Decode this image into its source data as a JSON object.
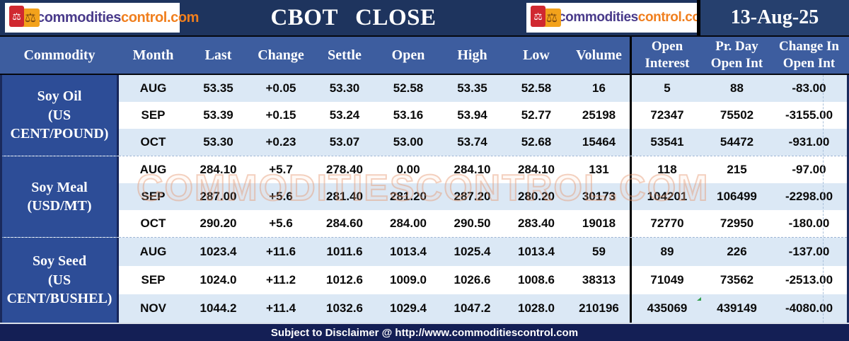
{
  "brand": {
    "name_part1": "commodities",
    "name_part2": "control.com",
    "icon_glyph": "⚖"
  },
  "header": {
    "title": "CBOT CLOSE",
    "date": "13-Aug-25"
  },
  "table": {
    "columns": {
      "commodity": "Commodity",
      "month": "Month",
      "last": "Last",
      "change": "Change",
      "settle": "Settle",
      "open": "Open",
      "high": "High",
      "low": "Low",
      "volume": "Volume",
      "open_interest_l1": "Open",
      "open_interest_l2": "Interest",
      "pr_day_l1": "Pr. Day",
      "pr_day_l2": "Open Int",
      "change_oi_l1": "Change In",
      "change_oi_l2": "Open Int"
    },
    "sections": [
      {
        "commodity_lines": [
          "Soy Oil",
          "(US",
          "CENT/POUND)"
        ],
        "rows": [
          {
            "month": "AUG",
            "last": "53.35",
            "change": "+0.05",
            "settle": "53.30",
            "open": "52.58",
            "high": "53.35",
            "low": "52.58",
            "volume": "16",
            "open_interest": "5",
            "pr_day_open_int": "88",
            "change_in_open_int": "-83.00"
          },
          {
            "month": "SEP",
            "last": "53.39",
            "change": "+0.15",
            "settle": "53.24",
            "open": "53.16",
            "high": "53.94",
            "low": "52.77",
            "volume": "25198",
            "open_interest": "72347",
            "pr_day_open_int": "75502",
            "change_in_open_int": "-3155.00"
          },
          {
            "month": "OCT",
            "last": "53.30",
            "change": "+0.23",
            "settle": "53.07",
            "open": "53.00",
            "high": "53.74",
            "low": "52.68",
            "volume": "15464",
            "open_interest": "53541",
            "pr_day_open_int": "54472",
            "change_in_open_int": "-931.00"
          }
        ]
      },
      {
        "commodity_lines": [
          "Soy Meal",
          "(USD/MT)"
        ],
        "rows": [
          {
            "month": "AUG",
            "last": "284.10",
            "change": "+5.7",
            "settle": "278.40",
            "open": "0.00",
            "high": "284.10",
            "low": "284.10",
            "volume": "131",
            "open_interest": "118",
            "pr_day_open_int": "215",
            "change_in_open_int": "-97.00"
          },
          {
            "month": "SEP",
            "last": "287.00",
            "change": "+5.6",
            "settle": "281.40",
            "open": "281.20",
            "high": "287.20",
            "low": "280.20",
            "volume": "30173",
            "open_interest": "104201",
            "pr_day_open_int": "106499",
            "change_in_open_int": "-2298.00"
          },
          {
            "month": "OCT",
            "last": "290.20",
            "change": "+5.6",
            "settle": "284.60",
            "open": "284.00",
            "high": "290.50",
            "low": "283.40",
            "volume": "19018",
            "open_interest": "72770",
            "pr_day_open_int": "72950",
            "change_in_open_int": "-180.00"
          }
        ]
      },
      {
        "commodity_lines": [
          "Soy Seed",
          "(US",
          "CENT/BUSHEL)"
        ],
        "rows": [
          {
            "month": "AUG",
            "last": "1023.4",
            "change": "+11.6",
            "settle": "1011.6",
            "open": "1013.4",
            "high": "1025.4",
            "low": "1013.4",
            "volume": "59",
            "open_interest": "89",
            "pr_day_open_int": "226",
            "change_in_open_int": "-137.00"
          },
          {
            "month": "SEP",
            "last": "1024.0",
            "change": "+11.2",
            "settle": "1012.6",
            "open": "1009.0",
            "high": "1026.6",
            "low": "1008.6",
            "volume": "38313",
            "open_interest": "71049",
            "pr_day_open_int": "73562",
            "change_in_open_int": "-2513.00"
          },
          {
            "month": "NOV",
            "last": "1044.2",
            "change": "+11.4",
            "settle": "1032.6",
            "open": "1029.4",
            "high": "1047.2",
            "low": "1028.0",
            "volume": "210196",
            "open_interest": "435069",
            "pr_day_open_int": "439149",
            "change_in_open_int": "-4080.00"
          }
        ]
      }
    ]
  },
  "watermark": "COMMODITIESCONTROL.COM",
  "footer": {
    "text": "Subject to Disclaimer @ http://www.commoditiescontrol.com"
  },
  "colors": {
    "top_band_navy": "#1e345e",
    "date_box_navy": "#26406e",
    "header_row_blue": "#3d5d9f",
    "commodity_cell_blue": "#2d4d97",
    "row_stripe_blue": "#dbe8f5",
    "footer_navy": "#141f55",
    "brand_purple": "#493a8a",
    "brand_orange": "#f07f1e",
    "logo_red_square": "#d02830",
    "logo_orange_square": "#f3a21b",
    "watermark_peach": "#e4946c"
  }
}
